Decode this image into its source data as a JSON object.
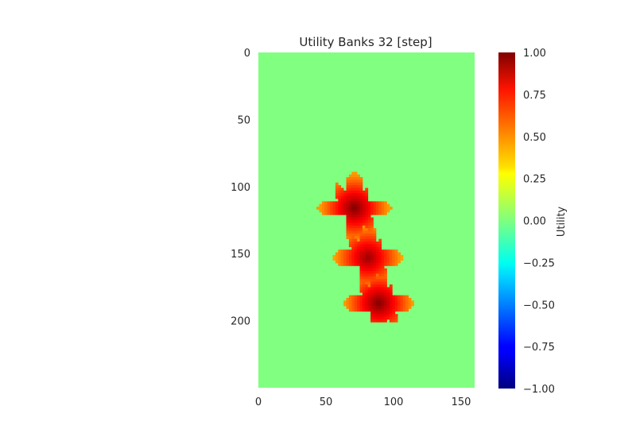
{
  "chart_data": {
    "type": "heatmap",
    "title": "Utility Banks 32 [step]",
    "x_range": [
      0,
      160
    ],
    "y_range": [
      0,
      250
    ],
    "x_ticks": [
      "0",
      "50",
      "100",
      "150"
    ],
    "y_ticks": [
      "0",
      "50",
      "100",
      "150",
      "200"
    ],
    "colormap": "jet",
    "background_value": 0.0,
    "colorbar": {
      "label": "Utility",
      "range": [
        -1.0,
        1.0
      ],
      "ticks": [
        "1.00",
        "0.75",
        "0.50",
        "0.25",
        "0.00",
        "−0.25",
        "−0.50",
        "−0.75",
        "−1.00"
      ]
    },
    "blobs": [
      {
        "name": "upper-cross",
        "center": [
          70,
          115
        ],
        "peak": 1.0
      },
      {
        "name": "middle-cross",
        "center": [
          80,
          152
        ],
        "peak": 0.95
      },
      {
        "name": "lower-cross",
        "center": [
          88,
          186
        ],
        "peak": 1.0
      }
    ],
    "grid": false
  },
  "colors": {
    "background_cell": "#7fff7f",
    "text": "#262626"
  }
}
